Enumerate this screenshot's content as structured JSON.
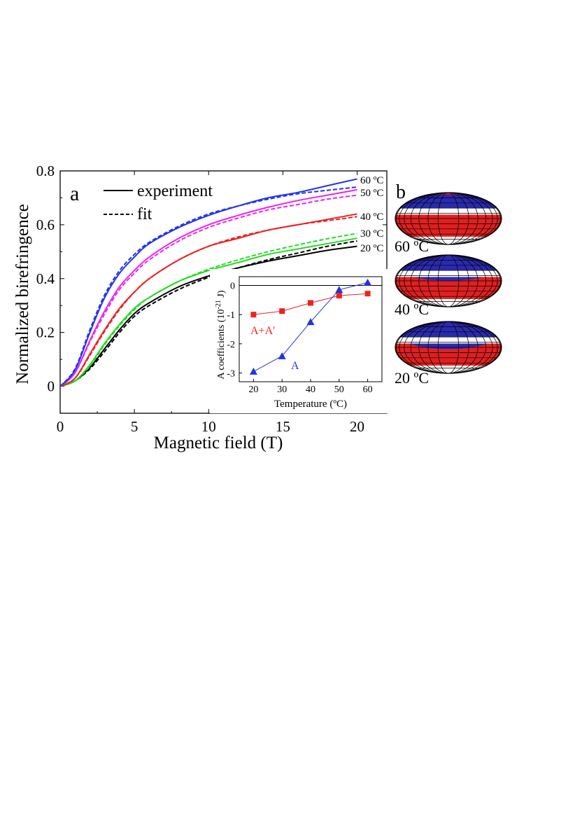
{
  "chart_data": [
    {
      "type": "line",
      "panel_label": "a",
      "xlabel": "Magnetic field (T)",
      "ylabel": "Normalized birefringence",
      "xlim": [
        0,
        22
      ],
      "ylim": [
        -0.1,
        0.8
      ],
      "x_ticks": [
        "0",
        "5",
        "10",
        "15",
        "20"
      ],
      "y_ticks": [
        "0",
        "0.2",
        "0.4",
        "0.6",
        "0.8"
      ],
      "legend": {
        "placement": "top-left",
        "entries": [
          "experiment",
          "fit"
        ]
      },
      "x": [
        0,
        1,
        2,
        3,
        4,
        5,
        6,
        8,
        10,
        12,
        14,
        16,
        18,
        20
      ],
      "series": [
        {
          "name": "20 °C",
          "color": "#000000",
          "label": "20 ºC",
          "experiment": [
            0,
            0.02,
            0.07,
            0.14,
            0.21,
            0.27,
            0.31,
            0.37,
            0.41,
            0.44,
            0.465,
            0.485,
            0.505,
            0.52
          ],
          "fit": [
            0,
            0.02,
            0.065,
            0.13,
            0.2,
            0.26,
            0.3,
            0.36,
            0.405,
            0.44,
            0.47,
            0.495,
            0.52,
            0.54
          ]
        },
        {
          "name": "30 °C",
          "color": "#22dd22",
          "label": "30 ºC",
          "experiment": [
            0,
            0.02,
            0.08,
            0.16,
            0.23,
            0.29,
            0.33,
            0.39,
            0.43,
            0.46,
            0.49,
            0.51,
            0.53,
            0.55
          ],
          "fit": [
            0,
            0.02,
            0.075,
            0.155,
            0.225,
            0.285,
            0.33,
            0.39,
            0.435,
            0.47,
            0.5,
            0.525,
            0.548,
            0.568
          ]
        },
        {
          "name": "40 °C",
          "color": "#ee2222",
          "label": "40 ºC",
          "experiment": [
            0,
            0.03,
            0.12,
            0.21,
            0.29,
            0.35,
            0.4,
            0.47,
            0.52,
            0.55,
            0.58,
            0.6,
            0.62,
            0.64
          ],
          "fit": [
            0,
            0.03,
            0.115,
            0.205,
            0.285,
            0.35,
            0.4,
            0.47,
            0.52,
            0.555,
            0.58,
            0.6,
            0.615,
            0.63
          ]
        },
        {
          "name": "50 °C",
          "color": "#ee22ee",
          "label": "50 ºC",
          "experiment": [
            0,
            0.05,
            0.17,
            0.28,
            0.37,
            0.43,
            0.48,
            0.55,
            0.6,
            0.635,
            0.665,
            0.69,
            0.71,
            0.73
          ],
          "fit": [
            0,
            0.05,
            0.165,
            0.27,
            0.36,
            0.42,
            0.47,
            0.54,
            0.59,
            0.625,
            0.655,
            0.675,
            0.695,
            0.71
          ]
        },
        {
          "name": "60 °C",
          "color": "#2233ee",
          "label": "60 ºC",
          "experiment": [
            0,
            0.06,
            0.2,
            0.33,
            0.42,
            0.48,
            0.53,
            0.59,
            0.635,
            0.67,
            0.7,
            0.72,
            0.745,
            0.77
          ],
          "fit": [
            0,
            0.065,
            0.21,
            0.34,
            0.43,
            0.49,
            0.535,
            0.595,
            0.64,
            0.67,
            0.695,
            0.715,
            0.728,
            0.74
          ]
        }
      ]
    },
    {
      "type": "line",
      "panel_label": "inset",
      "xlabel": "Temperature (ºC)",
      "ylabel": "A coefficients (10",
      "ylabel_sup": "-21",
      "ylabel_end": " J)",
      "xlim": [
        15,
        65
      ],
      "ylim": [
        -3.3,
        0.3
      ],
      "x_ticks": [
        "20",
        "30",
        "40",
        "50",
        "60"
      ],
      "y_ticks": [
        "0",
        "-1",
        "-2",
        "-3"
      ],
      "x": [
        20,
        30,
        40,
        50,
        60
      ],
      "series": [
        {
          "name": "A+A'",
          "color": "#ee2222",
          "marker": "square",
          "values": [
            -1.0,
            -0.88,
            -0.6,
            -0.35,
            -0.28
          ]
        },
        {
          "name": "A",
          "color": "#2233dd",
          "marker": "triangle",
          "values": [
            -2.95,
            -2.42,
            -1.25,
            -0.15,
            0.1
          ]
        }
      ]
    }
  ],
  "panel_b": {
    "label": "b",
    "temperatures": [
      "60 ºC",
      "40 ºC",
      "20 ºC"
    ],
    "colors": {
      "blue_cap": "#2a2ab0",
      "red_band": "#e02020",
      "white": "#ffffff"
    }
  }
}
